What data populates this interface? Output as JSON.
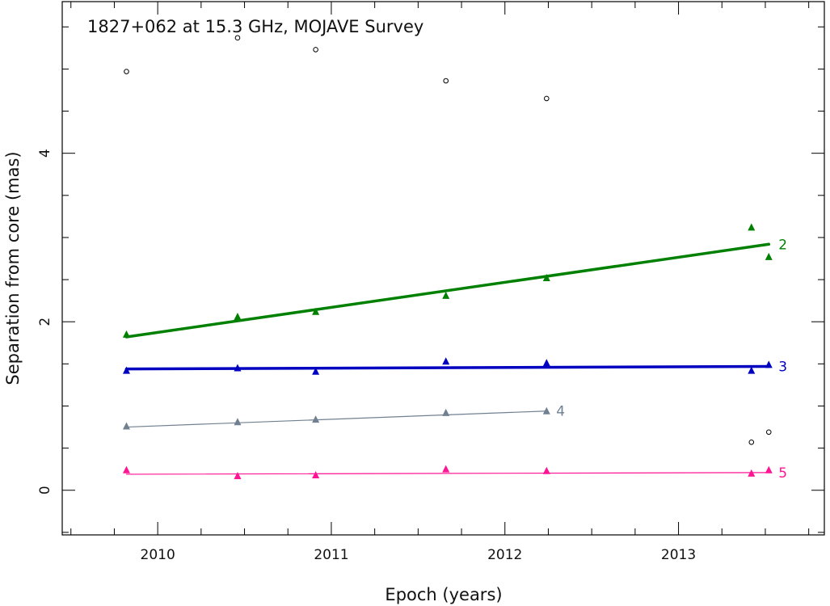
{
  "chart_data": {
    "type": "scatter",
    "title": "1827+062 at 15.3 GHz, MOJAVE Survey",
    "xlabel": "Epoch (years)",
    "ylabel": "Separation from core (mas)",
    "xlim": [
      2009.45,
      2013.84
    ],
    "ylim": [
      -0.53,
      5.8
    ],
    "xticks_major": [
      2010,
      2011,
      2012,
      2013
    ],
    "xticks_minor_step": 0.25,
    "yticks_major": [
      0,
      2,
      4
    ],
    "yticks_minor_step": 0.5,
    "grid": false,
    "series": [
      {
        "name": "2",
        "color": "#008000",
        "marker": "triangle",
        "x": [
          2009.82,
          2010.46,
          2010.91,
          2011.66,
          2012.24,
          2013.42,
          2013.52
        ],
        "y": [
          1.85,
          2.06,
          2.12,
          2.31,
          2.52,
          3.12,
          2.77
        ],
        "fit": {
          "x": [
            2009.82,
            2013.52
          ],
          "y": [
            1.82,
            2.92
          ]
        }
      },
      {
        "name": "3",
        "color": "#0000c0",
        "marker": "triangle",
        "x": [
          2009.82,
          2010.46,
          2010.91,
          2011.66,
          2012.24,
          2013.42,
          2013.52
        ],
        "y": [
          1.42,
          1.45,
          1.41,
          1.53,
          1.51,
          1.42,
          1.49
        ],
        "fit": {
          "x": [
            2009.82,
            2013.52
          ],
          "y": [
            1.44,
            1.47
          ]
        }
      },
      {
        "name": "4",
        "color": "#708090",
        "marker": "triangle",
        "x": [
          2009.82,
          2010.46,
          2010.91,
          2011.66,
          2012.24
        ],
        "y": [
          0.76,
          0.81,
          0.84,
          0.92,
          0.94
        ],
        "fit": {
          "x": [
            2009.82,
            2012.24
          ],
          "y": [
            0.75,
            0.94
          ]
        }
      },
      {
        "name": "5",
        "color": "#ff1493",
        "marker": "triangle",
        "x": [
          2009.82,
          2010.46,
          2010.91,
          2011.66,
          2012.24,
          2013.42,
          2013.52
        ],
        "y": [
          0.24,
          0.17,
          0.18,
          0.25,
          0.23,
          0.2,
          0.24
        ],
        "fit": {
          "x": [
            2009.82,
            2013.52
          ],
          "y": [
            0.19,
            0.21
          ]
        }
      },
      {
        "name": "",
        "color": "#000000",
        "marker": "circle",
        "x": [
          2009.82,
          2010.46,
          2010.91,
          2011.66,
          2012.24,
          2013.42,
          2013.52
        ],
        "y": [
          4.97,
          5.37,
          5.23,
          4.86,
          4.65,
          0.57,
          0.69
        ]
      }
    ]
  }
}
